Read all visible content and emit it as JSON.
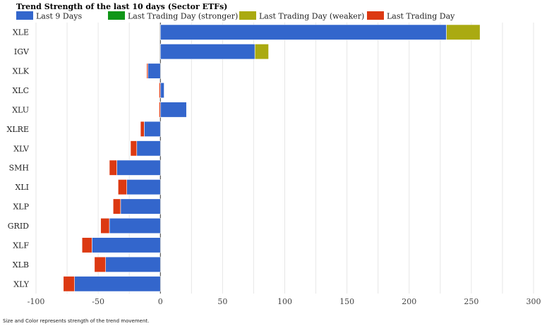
{
  "chart_data": {
    "type": "bar",
    "orientation": "horizontal",
    "stacked": true,
    "title": "Trend Strength of the last 10 days (Sector ETFs)",
    "categories": [
      "XLE",
      "IGV",
      "XLK",
      "XLC",
      "XLU",
      "XLRE",
      "XLV",
      "SMH",
      "XLI",
      "XLP",
      "GRID",
      "XLF",
      "XLB",
      "XLY"
    ],
    "series": [
      {
        "name": "Last 9 Days",
        "color": "#3366cc",
        "values": [
          230,
          76,
          -10,
          3,
          21,
          -13,
          -19,
          -35,
          -27,
          -32,
          -41,
          -55,
          -44,
          -69
        ]
      },
      {
        "name": "Last Trading Day (stronger)",
        "color": "#109618",
        "values": [
          0,
          0,
          0,
          0,
          0,
          0,
          0,
          0,
          0,
          0,
          0,
          0,
          0,
          0
        ]
      },
      {
        "name": "Last Trading Day (weaker)",
        "color": "#aaaa11",
        "values": [
          27,
          11,
          0,
          0,
          0,
          0,
          0,
          0,
          0,
          0,
          0,
          0,
          0,
          0
        ]
      },
      {
        "name": "Last Trading Day",
        "color": "#dc3912",
        "values": [
          0,
          0,
          -1,
          -1,
          -1,
          -3,
          -5,
          -6,
          -7,
          -6,
          -7,
          -8,
          -9,
          -9
        ]
      }
    ],
    "xlim": [
      -100,
      300
    ],
    "xticks": [
      "-100",
      "-50",
      "0",
      "50",
      "100",
      "150",
      "200",
      "250",
      "300"
    ],
    "grid": true,
    "legend_position": "top-left",
    "xlabel": "",
    "ylabel": ""
  },
  "footnote": "Size and Color represents strength of the trend movement."
}
